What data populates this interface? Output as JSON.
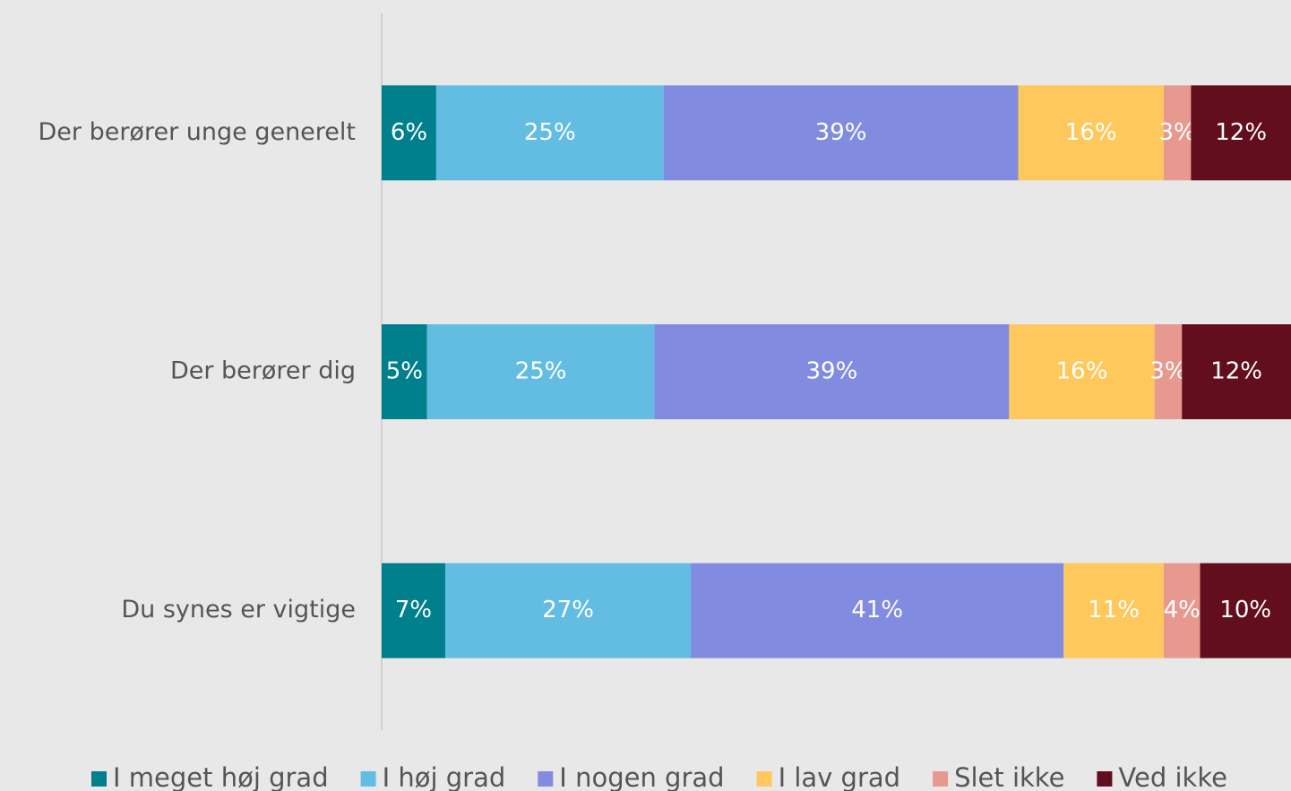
{
  "chart_data": {
    "type": "stacked_barh",
    "categories": [
      "Der berører unge generelt",
      "Der berører dig",
      "Du synes er vigtige"
    ],
    "series": [
      {
        "name": "I meget høj grad",
        "color": "#00808c",
        "values": [
          6,
          5,
          7
        ],
        "value_labels": [
          "6%",
          "5%",
          "7%"
        ]
      },
      {
        "name": "I høj grad",
        "color": "#63bde2",
        "values": [
          25,
          25,
          27
        ],
        "value_labels": [
          "25%",
          "25%",
          "27%"
        ]
      },
      {
        "name": "I nogen grad",
        "color": "#818be0",
        "values": [
          39,
          39,
          41
        ],
        "value_labels": [
          "39%",
          "39%",
          "41%"
        ]
      },
      {
        "name": "I lav grad",
        "color": "#ffc85c",
        "values": [
          16,
          16,
          11
        ],
        "value_labels": [
          "16%",
          "16%",
          "11%"
        ]
      },
      {
        "name": "Slet ikke",
        "color": "#e8998f",
        "values": [
          3,
          3,
          4
        ],
        "value_labels": [
          "3%",
          "3%",
          "4%"
        ]
      },
      {
        "name": "Ved ikke",
        "color": "#620e1d",
        "values": [
          12,
          12,
          10
        ],
        "value_labels": [
          "12%",
          "12%",
          "10%"
        ]
      }
    ],
    "xlim": [
      0,
      100
    ],
    "legend": "bottom"
  }
}
